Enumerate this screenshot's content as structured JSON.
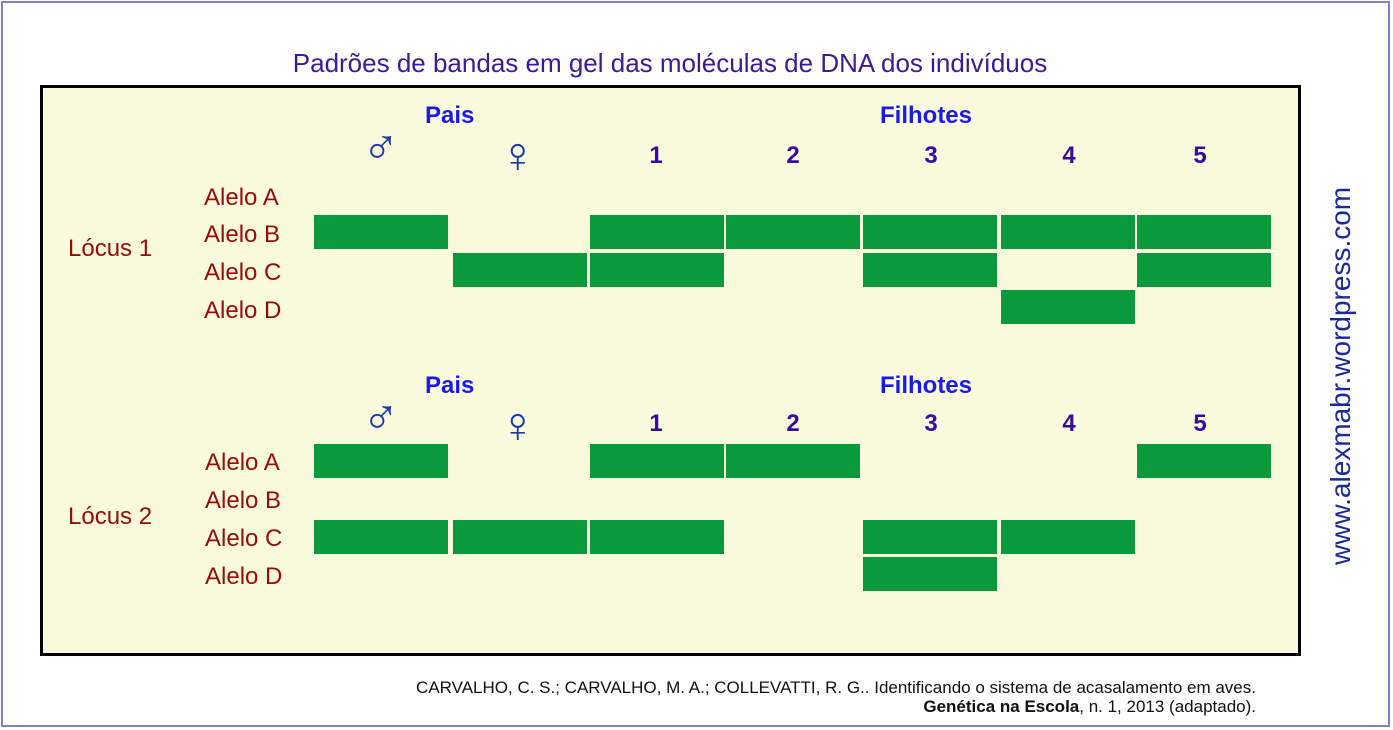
{
  "title": "Padrões de bandas em gel das moléculas de DNA dos indivíduos",
  "parents_label": "Pais",
  "offspring_label": "Filhotes",
  "male_symbol": "♂",
  "female_symbol": "♀",
  "offspring_numbers": [
    "1",
    "2",
    "3",
    "4",
    "5"
  ],
  "alleles": [
    "Alelo A",
    "Alelo B",
    "Alelo C",
    "Alelo D"
  ],
  "loci": [
    {
      "label": "Lócus 1",
      "bands": {
        "male": [
          "B"
        ],
        "female": [
          "C"
        ],
        "offspring_1": [
          "B",
          "C"
        ],
        "offspring_2": [
          "B"
        ],
        "offspring_3": [
          "B",
          "C"
        ],
        "offspring_4": [
          "B",
          "D"
        ],
        "offspring_5": [
          "B",
          "C"
        ]
      }
    },
    {
      "label": "Lócus 2",
      "bands": {
        "male": [
          "A",
          "C"
        ],
        "female": [
          "C"
        ],
        "offspring_1": [
          "A",
          "C"
        ],
        "offspring_2": [
          "A"
        ],
        "offspring_3": [
          "C",
          "D"
        ],
        "offspring_4": [
          "C"
        ],
        "offspring_5": [
          "A"
        ]
      }
    }
  ],
  "band_color": "#0a9a3c",
  "watermark": "www.alexmabr.wordpress.com",
  "reference_line1": "CARVALHO, C. S.; CARVALHO, M. A.; COLLEVATTI, R. G..  Identificando o sistema de acasalamento em aves.",
  "reference_journal": "Genética na Escola",
  "reference_rest": ", n. 1, 2013 (adaptado)."
}
